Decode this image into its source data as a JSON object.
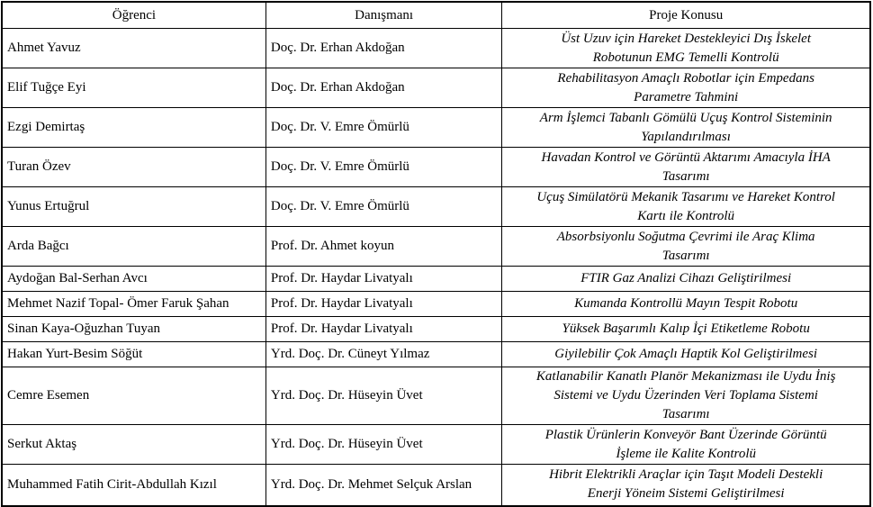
{
  "table": {
    "headers": [
      "Öğrenci",
      "Danışmanı",
      "Proje Konusu"
    ],
    "rows": [
      {
        "student": "Ahmet Yavuz",
        "advisor": "Doç. Dr. Erhan Akdoğan",
        "topic": "Üst Uzuv için Hareket Destekleyici Dış İskelet\nRobotunun EMG Temelli Kontrolü"
      },
      {
        "student": "Elif Tuğçe Eyi",
        "advisor": "Doç. Dr. Erhan Akdoğan",
        "topic": "Rehabilitasyon Amaçlı Robotlar için Empedans\nParametre Tahmini"
      },
      {
        "student": "Ezgi Demirtaş",
        "advisor": "Doç. Dr. V. Emre Ömürlü",
        "topic": "Arm İşlemci Tabanlı Gömülü Uçuş Kontrol Sisteminin\nYapılandırılması"
      },
      {
        "student": "Turan Özev",
        "advisor": "Doç. Dr. V. Emre Ömürlü",
        "topic": "Havadan Kontrol ve Görüntü Aktarımı Amacıyla İHA\nTasarımı"
      },
      {
        "student": "Yunus Ertuğrul",
        "advisor": "Doç. Dr. V. Emre Ömürlü",
        "topic": "Uçuş Simülatörü Mekanik Tasarımı ve Hareket Kontrol\nKartı ile Kontrolü"
      },
      {
        "student": "Arda Bağcı",
        "advisor": "Prof. Dr. Ahmet koyun",
        "topic": "Absorbsiyonlu Soğutma Çevrimi ile Araç Klima\nTasarımı"
      },
      {
        "student": "Aydoğan Bal-Serhan Avcı",
        "advisor": "Prof. Dr. Haydar Livatyalı",
        "topic": "FTIR Gaz Analizi Cihazı Geliştirilmesi"
      },
      {
        "student": "Mehmet Nazif Topal- Ömer Faruk Şahan",
        "advisor": "Prof. Dr. Haydar Livatyalı",
        "topic": "Kumanda Kontrollü Mayın Tespit Robotu"
      },
      {
        "student": "Sinan Kaya-Oğuzhan Tuyan",
        "advisor": "Prof. Dr. Haydar Livatyalı",
        "topic": "Yüksek Başarımlı Kalıp İçi Etiketleme Robotu"
      },
      {
        "student": "Hakan Yurt-Besim Söğüt",
        "advisor": "Yrd. Doç. Dr. Cüneyt Yılmaz",
        "topic": "Giyilebilir Çok Amaçlı Haptik Kol Geliştirilmesi"
      },
      {
        "student": "Cemre Esemen",
        "advisor": "Yrd. Doç. Dr. Hüseyin Üvet",
        "topic": "Katlanabilir Kanatlı Planör Mekanizması ile Uydu İniş\nSistemi ve Uydu Üzerinden Veri Toplama Sistemi\nTasarımı"
      },
      {
        "student": "Serkut Aktaş",
        "advisor": "Yrd. Doç. Dr. Hüseyin Üvet",
        "topic": "Plastik Ürünlerin Konveyör Bant Üzerinde Görüntü\nİşleme ile Kalite Kontrolü"
      },
      {
        "student": "Muhammed Fatih Cirit-Abdullah Kızıl",
        "advisor": "Yrd. Doç. Dr. Mehmet Selçuk Arslan",
        "topic": "Hibrit Elektrikli Araçlar için Taşıt Modeli Destekli\nEnerji Yöneim Sistemi Geliştirilmesi"
      }
    ]
  }
}
